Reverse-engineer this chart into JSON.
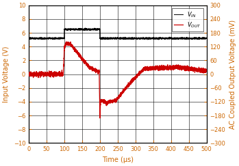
{
  "title": "",
  "xlabel": "Time (μs)",
  "ylabel_left": "Input Voltage (V)",
  "ylabel_right": "AC Coupled Output Voltage (mV)",
  "xlim": [
    0,
    500
  ],
  "ylim_left": [
    -10,
    10
  ],
  "ylim_right": [
    -300,
    300
  ],
  "xticks": [
    0,
    50,
    100,
    150,
    200,
    250,
    300,
    350,
    400,
    450,
    500
  ],
  "yticks_left": [
    -10,
    -8,
    -6,
    -4,
    -2,
    0,
    2,
    4,
    6,
    8,
    10
  ],
  "yticks_right": [
    -300,
    -240,
    -180,
    -120,
    -60,
    0,
    60,
    120,
    180,
    240,
    300
  ],
  "vin_color": "#000000",
  "vout_color": "#cc0000",
  "grid_color": "#000000",
  "bg_color": "#ffffff",
  "font_color": "#cc6600",
  "tick_color": "#cc6600",
  "vin_base": 5.2,
  "vin_step": 6.5,
  "vin_noise": 0.05,
  "vout_noise_base": 0.12,
  "vout_noise_settled": 0.18
}
